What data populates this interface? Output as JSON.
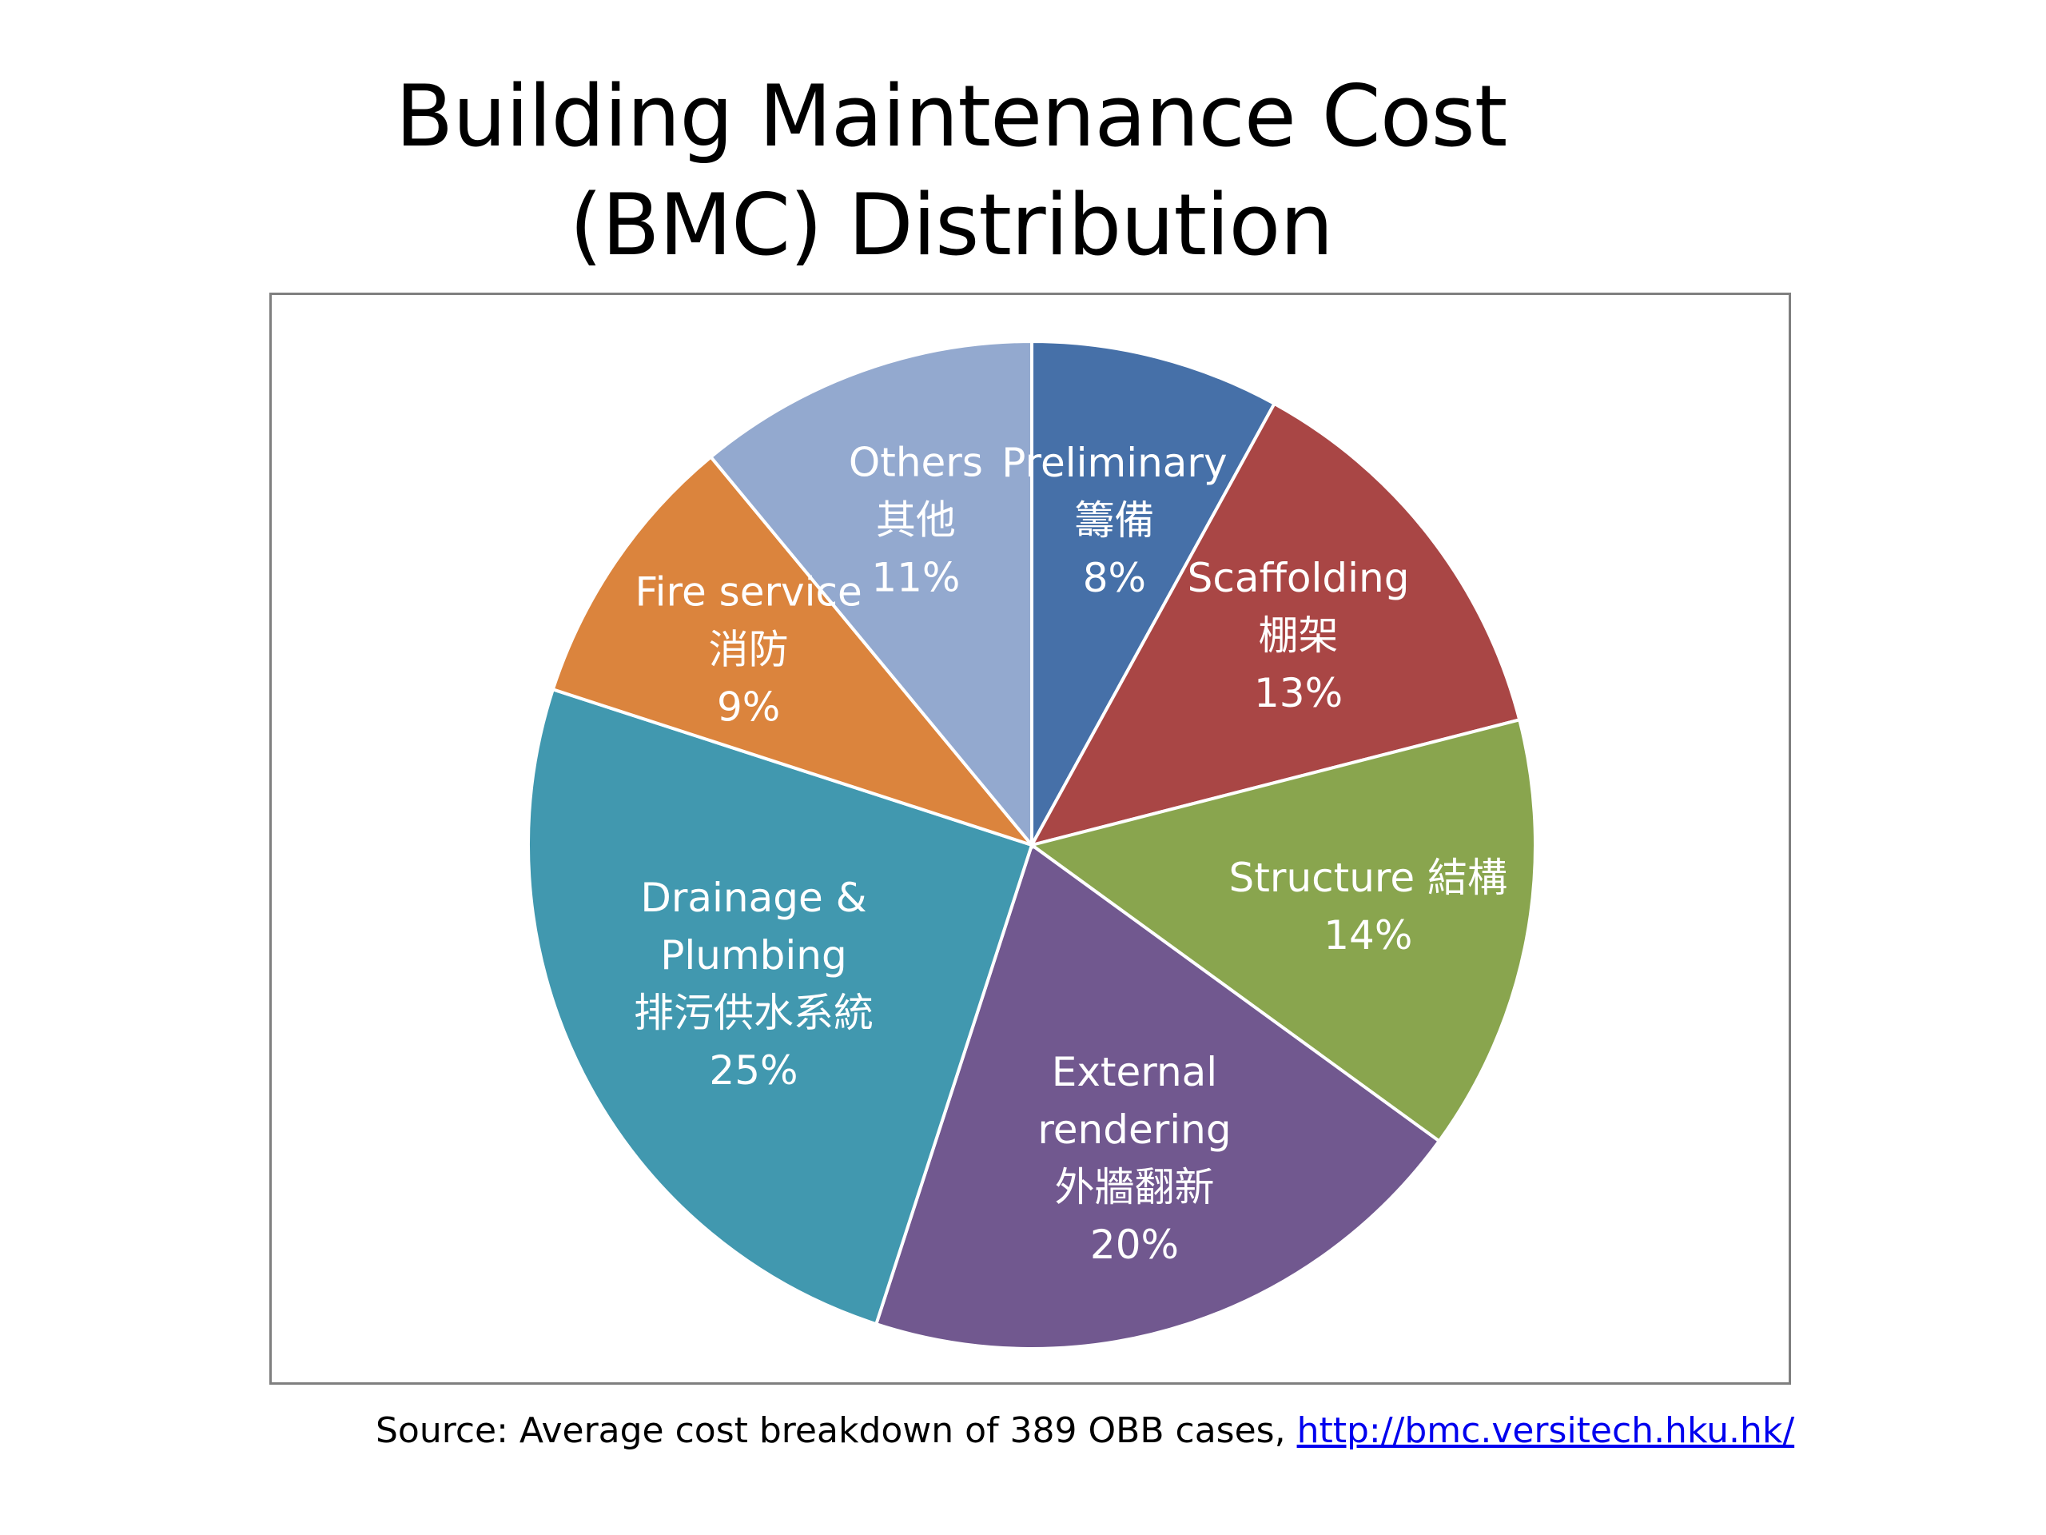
{
  "title_line1": "Building Maintenance Cost",
  "title_line2": "(BMC) Distribution",
  "source": {
    "text": "Source: Average cost breakdown of 389 OBB cases, ",
    "link": "http://bmc.versitech.hku.hk/"
  },
  "chart_data": {
    "type": "pie",
    "title": "Building Maintenance Cost (BMC) Distribution",
    "slices": [
      {
        "label_lines": [
          "Preliminary",
          "籌備"
        ],
        "value": 8,
        "value_label": "8%",
        "color": "#4670a8"
      },
      {
        "label_lines": [
          "Scaffolding",
          "棚架"
        ],
        "value": 13,
        "value_label": "13%",
        "color": "#a94645"
      },
      {
        "label_lines": [
          "Structure 結構"
        ],
        "value": 14,
        "value_label": "14%",
        "color": "#89a54e"
      },
      {
        "label_lines": [
          "External",
          "rendering",
          "外牆翻新"
        ],
        "value": 20,
        "value_label": "20%",
        "color": "#71588f"
      },
      {
        "label_lines": [
          "Drainage &",
          "Plumbing",
          "排污供水系統"
        ],
        "value": 25,
        "value_label": "25%",
        "color": "#4198af"
      },
      {
        "label_lines": [
          "Fire service",
          "消防"
        ],
        "value": 9,
        "value_label": "9%",
        "color": "#db843d"
      },
      {
        "label_lines": [
          "Others",
          "其他"
        ],
        "value": 11,
        "value_label": "11%",
        "color": "#93a9cf"
      }
    ],
    "start": "12 o'clock",
    "direction": "clockwise",
    "slice_border_color": "#ffffff"
  }
}
